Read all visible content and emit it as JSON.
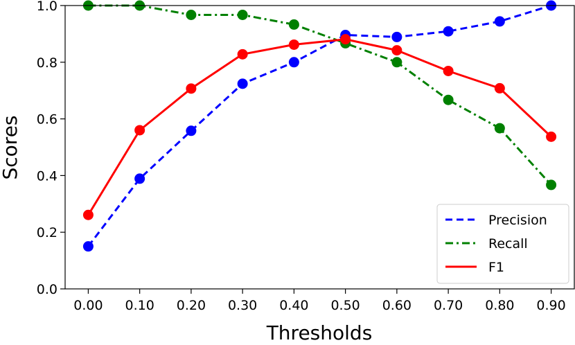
{
  "chart_data": {
    "type": "line",
    "title": "",
    "xlabel": "Thresholds",
    "ylabel": "Scores",
    "categories": [
      "0.00",
      "0.10",
      "0.20",
      "0.30",
      "0.40",
      "0.50",
      "0.60",
      "0.70",
      "0.80",
      "0.90"
    ],
    "x": [
      0.0,
      0.1,
      0.2,
      0.3,
      0.4,
      0.5,
      0.6,
      0.7,
      0.8,
      0.9
    ],
    "xlim": [
      -0.045,
      0.945
    ],
    "ylim": [
      0.0,
      1.0
    ],
    "y_ticks": [
      "0.0",
      "0.2",
      "0.4",
      "0.6",
      "0.8",
      "1.0"
    ],
    "grid": false,
    "legend_position": "lower right",
    "series": [
      {
        "name": "Precision",
        "color": "#0000ff",
        "line_style": "dashed",
        "marker": "circle",
        "values": [
          0.15,
          0.389,
          0.558,
          0.724,
          0.8,
          0.896,
          0.889,
          0.909,
          0.944,
          1.0
        ]
      },
      {
        "name": "Recall",
        "color": "#008000",
        "line_style": "dash-dot",
        "marker": "circle",
        "values": [
          1.0,
          1.0,
          0.967,
          0.967,
          0.933,
          0.867,
          0.8,
          0.667,
          0.567,
          0.367
        ]
      },
      {
        "name": "F1",
        "color": "#ff0000",
        "line_style": "solid",
        "marker": "circle",
        "values": [
          0.261,
          0.56,
          0.707,
          0.828,
          0.862,
          0.881,
          0.842,
          0.769,
          0.708,
          0.537
        ]
      }
    ]
  }
}
